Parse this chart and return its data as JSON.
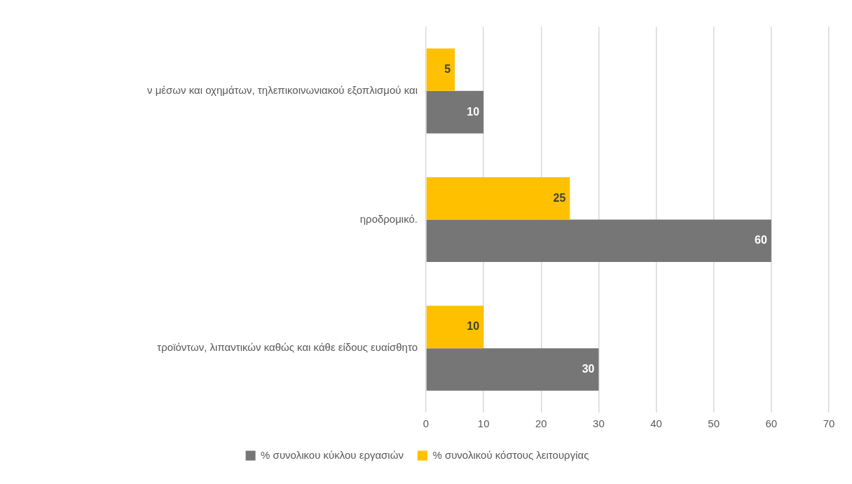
{
  "chart_data": {
    "type": "bar",
    "orientation": "horizontal",
    "categories": [
      "ν μέσων και οχημάτων, τηλεπικοινωνιακού εξοπλισμού και",
      "ηροδρομικό.",
      "τροϊόντων, λιπαντικών καθώς και κάθε είδους ευαίσθητο"
    ],
    "series": [
      {
        "name": "% συνολικου κύκλου εργασιών",
        "color": "#767676",
        "values": [
          10,
          60,
          30
        ]
      },
      {
        "name": "% συνολικού κόστους λειτουργίας",
        "color": "#ffc000",
        "values": [
          5,
          25,
          10
        ]
      }
    ],
    "xlim": [
      0,
      70
    ],
    "xticks": [
      0,
      10,
      20,
      30,
      40,
      50,
      60,
      70
    ],
    "grid": "x",
    "legend": "bottom",
    "data_labels": true
  }
}
